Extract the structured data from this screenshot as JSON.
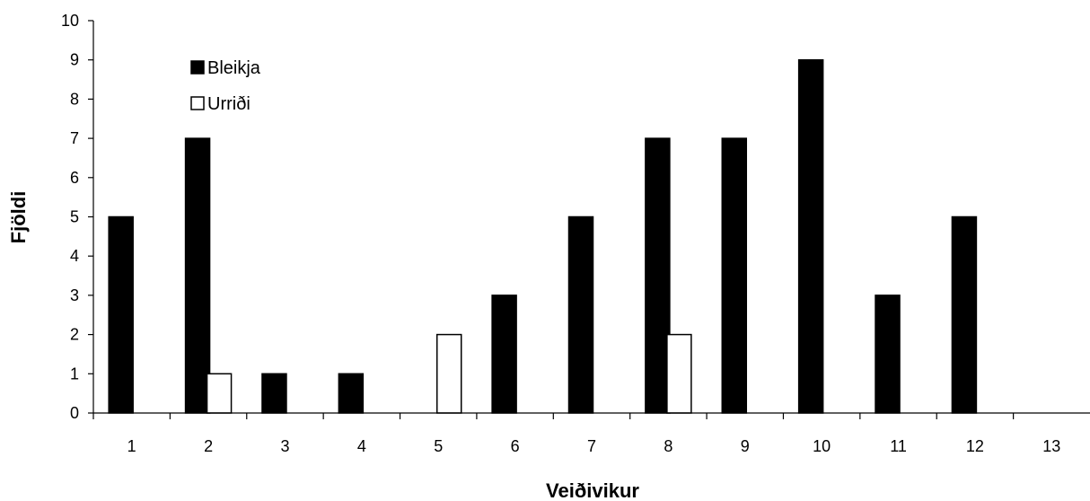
{
  "chart_data": {
    "type": "bar",
    "xlabel": "Veiðivikur",
    "ylabel": "Fjöldi",
    "categories": [
      "1",
      "2",
      "3",
      "4",
      "5",
      "6",
      "7",
      "8",
      "9",
      "10",
      "11",
      "12",
      "13"
    ],
    "ylim": [
      0,
      10
    ],
    "yticks": [
      0,
      1,
      2,
      3,
      4,
      5,
      6,
      7,
      8,
      9,
      10
    ],
    "grid": false,
    "legend_position": "top-left",
    "series": [
      {
        "name": "Bleikja",
        "color": "#000000",
        "values": [
          5,
          7,
          1,
          1,
          0,
          3,
          5,
          7,
          7,
          9,
          3,
          5,
          0
        ]
      },
      {
        "name": "Urriði",
        "color": "#ffffff",
        "values": [
          0,
          1,
          0,
          0,
          2,
          0,
          0,
          2,
          0,
          0,
          0,
          0,
          0
        ]
      }
    ]
  }
}
